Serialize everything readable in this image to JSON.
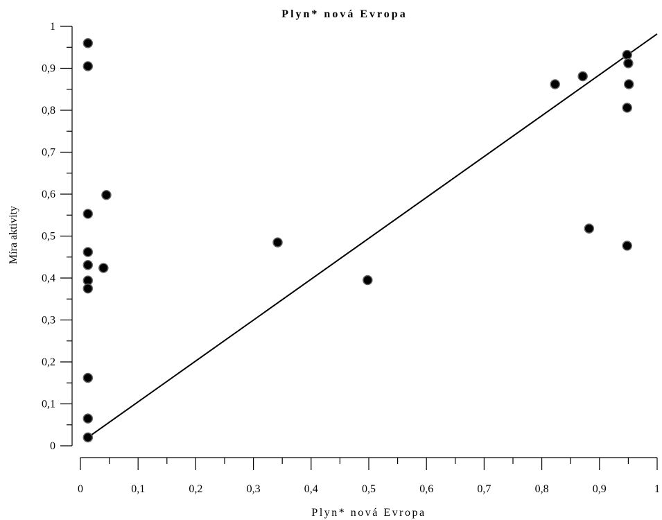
{
  "chart_data": {
    "type": "scatter",
    "title": "Plyn* nová Evropa",
    "xlabel": "Plyn* nová Evropa",
    "ylabel": "Míra aktivity",
    "xlim": [
      0,
      1
    ],
    "ylim": [
      0,
      1
    ],
    "x_ticks": [
      "0",
      "0,1",
      "0,2",
      "0,3",
      "0,4",
      "0,5",
      "0,6",
      "0,7",
      "0,8",
      "0,9",
      "1"
    ],
    "y_ticks": [
      "0",
      "0,1",
      "0,2",
      "0,3",
      "0,4",
      "0,5",
      "0,6",
      "0,7",
      "0,8",
      "0,9",
      "1"
    ],
    "grid": false,
    "points": [
      {
        "x": 0.013,
        "y": 0.96
      },
      {
        "x": 0.013,
        "y": 0.905
      },
      {
        "x": 0.013,
        "y": 0.553
      },
      {
        "x": 0.013,
        "y": 0.462
      },
      {
        "x": 0.013,
        "y": 0.431
      },
      {
        "x": 0.013,
        "y": 0.394
      },
      {
        "x": 0.013,
        "y": 0.375
      },
      {
        "x": 0.013,
        "y": 0.162
      },
      {
        "x": 0.013,
        "y": 0.065
      },
      {
        "x": 0.013,
        "y": 0.02
      },
      {
        "x": 0.045,
        "y": 0.598
      },
      {
        "x": 0.04,
        "y": 0.424
      },
      {
        "x": 0.342,
        "y": 0.485
      },
      {
        "x": 0.498,
        "y": 0.395
      },
      {
        "x": 0.823,
        "y": 0.862
      },
      {
        "x": 0.871,
        "y": 0.881
      },
      {
        "x": 0.882,
        "y": 0.518
      },
      {
        "x": 0.948,
        "y": 0.932
      },
      {
        "x": 0.95,
        "y": 0.912
      },
      {
        "x": 0.951,
        "y": 0.862
      },
      {
        "x": 0.948,
        "y": 0.806
      },
      {
        "x": 0.948,
        "y": 0.477
      }
    ],
    "fit_line": {
      "x": [
        0.013,
        1.0
      ],
      "y": [
        0.02,
        0.982
      ]
    }
  }
}
